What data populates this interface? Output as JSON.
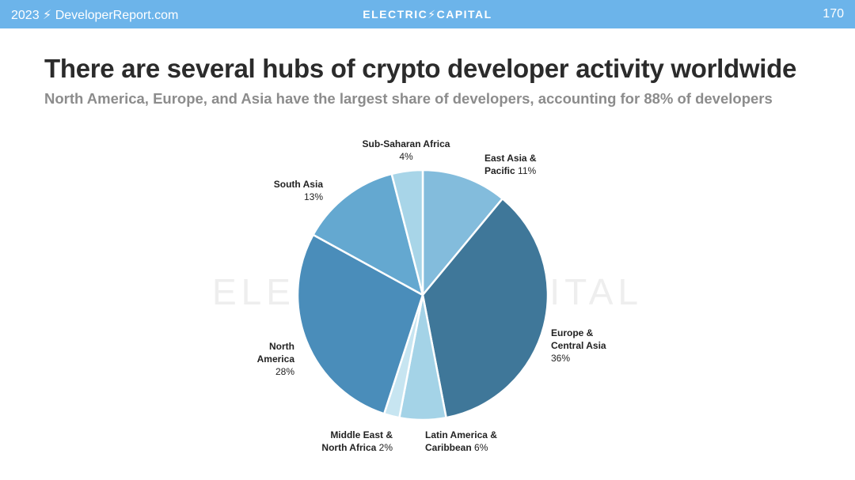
{
  "header": {
    "left_text": "2023 ⚡ DeveloperReport.com",
    "brand_text": "ELECTRIC⚡CAPITAL",
    "page_number": "170",
    "background_color": "#6cb4ea"
  },
  "title": "There are several hubs of crypto developer activity worldwide",
  "subtitle": "North America, Europe, and Asia have the largest share of developers, accounting for 88% of developers",
  "watermark": "ELECTRIC⚡CAPITAL",
  "chart_data": {
    "type": "pie",
    "slices": [
      {
        "label": "East Asia & Pacific",
        "value": 11,
        "pct_text": "11%",
        "color": "#83bcdc"
      },
      {
        "label": "Europe & Central Asia",
        "value": 36,
        "pct_text": "36%",
        "color": "#3f7799"
      },
      {
        "label": "Latin America & Caribbean",
        "value": 6,
        "pct_text": "6%",
        "color": "#a4d3e7"
      },
      {
        "label": "Middle East & North Africa",
        "value": 2,
        "pct_text": "2%",
        "color": "#c7e5f1"
      },
      {
        "label": "North America",
        "value": 28,
        "pct_text": "28%",
        "color": "#4a8dba"
      },
      {
        "label": "South Asia",
        "value": 13,
        "pct_text": "13%",
        "color": "#64a8d0"
      },
      {
        "label": "Sub-Saharan Africa",
        "value": 4,
        "pct_text": "4%",
        "color": "#a8d5e8"
      }
    ]
  }
}
